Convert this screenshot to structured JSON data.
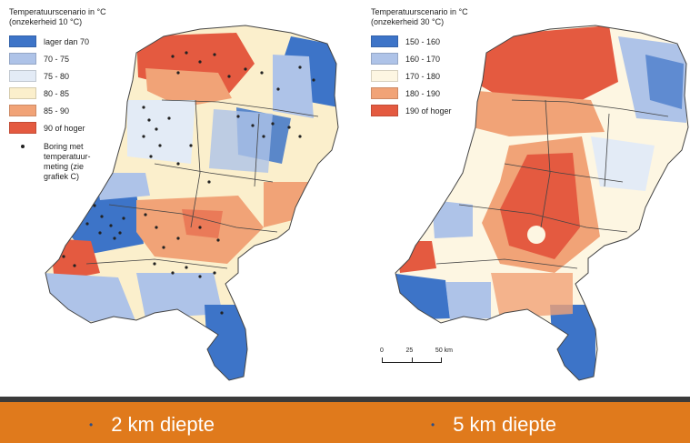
{
  "maps": [
    {
      "title": "Temperatuurscenario in °C",
      "subtitle": "(onzekerheid 10 °C)",
      "legend": [
        {
          "label": "lager dan 70",
          "color": "#3d74c8"
        },
        {
          "label": "70 - 75",
          "color": "#aec3e8"
        },
        {
          "label": "75 - 80",
          "color": "#e3ebf6"
        },
        {
          "label": "80 - 85",
          "color": "#fbefcc"
        },
        {
          "label": "85 - 90",
          "color": "#f1a377"
        },
        {
          "label": "90 of hoger",
          "color": "#e45a40"
        }
      ],
      "boring_legend": "Boring met temperatuur-meting (zie grafiek C)"
    },
    {
      "title": "Temperatuurscenario in °C",
      "subtitle": "(onzekerheid 30 °C)",
      "legend": [
        {
          "label": "150 - 160",
          "color": "#3d74c8"
        },
        {
          "label": "160 - 170",
          "color": "#aec3e8"
        },
        {
          "label": "170 - 180",
          "color": "#fdf6e2"
        },
        {
          "label": "180 - 190",
          "color": "#f1a377"
        },
        {
          "label": "190 of hoger",
          "color": "#e45a40"
        }
      ],
      "scale": {
        "ticks": [
          "0",
          "25",
          "50 km"
        ]
      }
    }
  ],
  "captions": [
    "2 km diepte",
    "5 km diepte"
  ],
  "colors": {
    "footer_bar": "#e07a1c",
    "footer_dark": "#3a3a3a",
    "bullet": "#2c4d86"
  }
}
